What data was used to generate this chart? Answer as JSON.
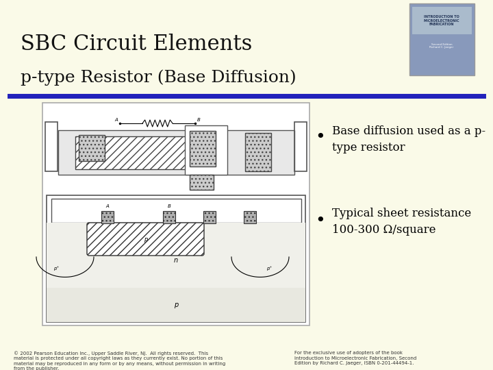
{
  "bg_color": "#FAFAE8",
  "title_line1": "SBC Circuit Elements",
  "title_line2": "p-type Resistor (Base Diffusion)",
  "title_color": "#111111",
  "title_fontsize1": 22,
  "title_fontsize2": 18,
  "divider_color": "#2222bb",
  "bullet1_line1": "Base diffusion used as a p-",
  "bullet1_line2": "type resistor",
  "bullet2_line1": "Typical sheet resistance",
  "bullet2_line2": "100-300 Ω/square",
  "bullet_fontsize": 12,
  "footer_left": "© 2002 Pearson Education Inc., Upper Saddle River, NJ.  All rights reserved.  This\nmaterial is protected under all copyright laws as they currently exist. No portion of this\nmaterial may be reproduced in any form or by any means, without permission in writing\nfrom the publisher.",
  "footer_right": "For the exclusive use of adopters of the book\nIntroduction to Microelectronic Fabrication, Second\nEdition by Richard C. Jaeger, ISBN 0-201-44494-1.",
  "footer_fontsize": 5,
  "footer_color": "#333333"
}
